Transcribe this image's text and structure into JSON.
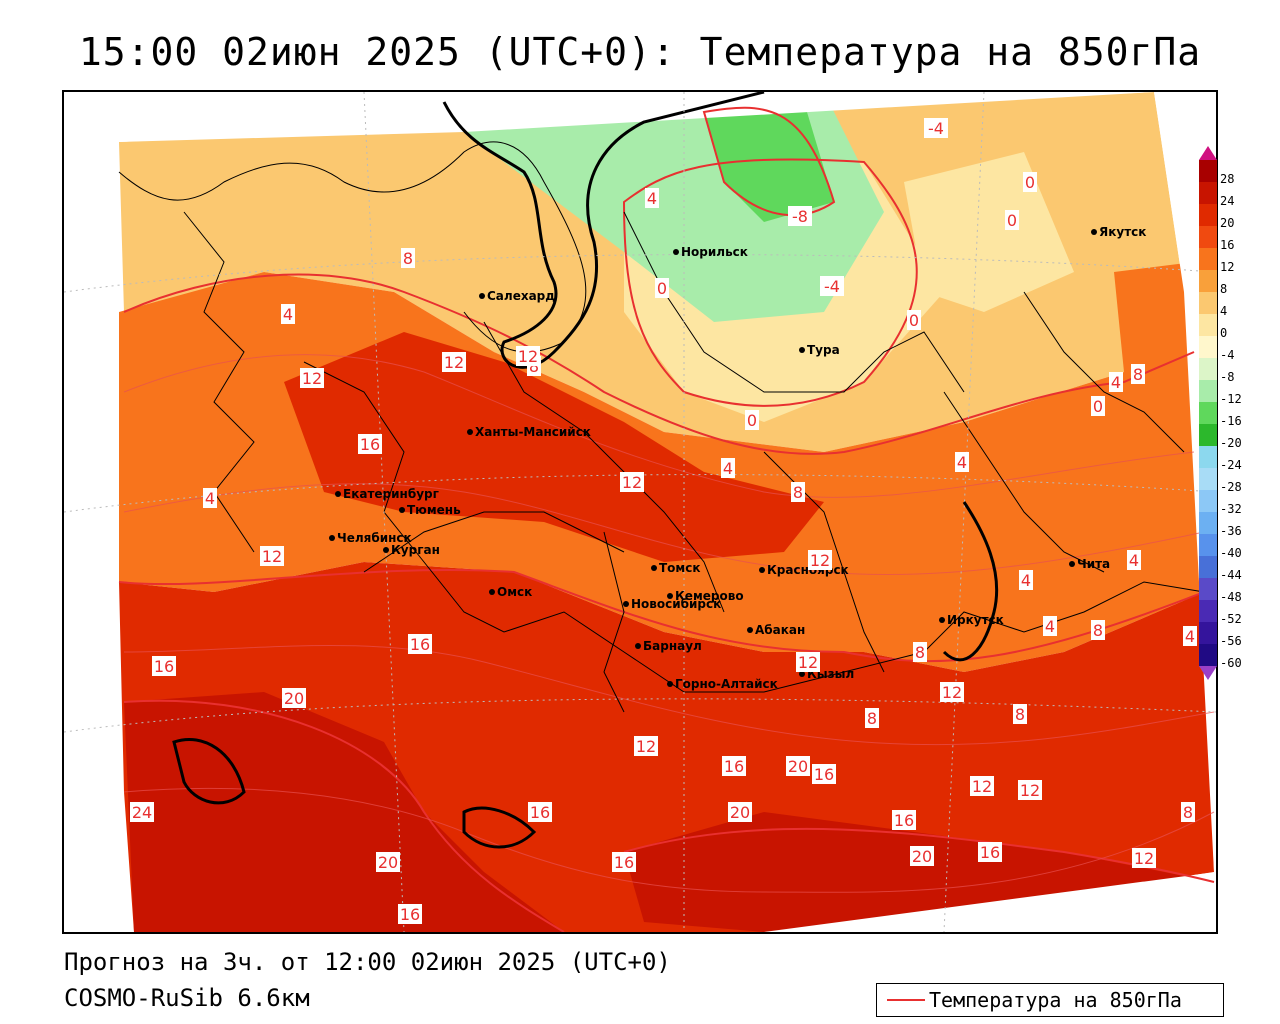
{
  "title": "15:00 02июн 2025 (UTC+0): Температура на 850гПа",
  "footer": {
    "forecast": "Прогноз на 3ч. от 12:00 02июн 2025 (UTC+0)",
    "model": "COSMO-RuSib 6.6км"
  },
  "legend": {
    "series_label": "Температура на 850гПа",
    "line_color": "#e83030",
    "colorbar_ticks": [
      "28",
      "24",
      "20",
      "16",
      "12",
      "8",
      "4",
      "0",
      "-4",
      "-8",
      "-12",
      "-16",
      "-20",
      "-24",
      "-28",
      "-32",
      "-36",
      "-40",
      "-44",
      "-48",
      "-52",
      "-56",
      "-60"
    ],
    "colorbar_colors": [
      "#a80000",
      "#c81400",
      "#e02a00",
      "#f04a10",
      "#f8741c",
      "#f9a03a",
      "#fbc870",
      "#fde6a2",
      "#fff7cc",
      "#dcf5c8",
      "#a8ecaa",
      "#5fd85c",
      "#2cb82c",
      "#8cd8ee",
      "#a8dcf6",
      "#8cc8f6",
      "#6cb0f2",
      "#5892ec",
      "#4870d8",
      "#5a4ac8",
      "#4a2ab4",
      "#34149c",
      "#200a84"
    ]
  },
  "cities": [
    {
      "name": "Норильск"
    },
    {
      "name": "Якутск"
    },
    {
      "name": "Салехард"
    },
    {
      "name": "Тура"
    },
    {
      "name": "Ханты-Мансийск"
    },
    {
      "name": "Екатеринбург"
    },
    {
      "name": "Тюмень"
    },
    {
      "name": "Челябинск"
    },
    {
      "name": "Курган"
    },
    {
      "name": "Омск"
    },
    {
      "name": "Новосибирск"
    },
    {
      "name": "Томск"
    },
    {
      "name": "Кемерово"
    },
    {
      "name": "Красноярск"
    },
    {
      "name": "Абакан"
    },
    {
      "name": "Барнаул"
    },
    {
      "name": "Горно-Алтайск"
    },
    {
      "name": "Кызыл"
    },
    {
      "name": "Иркутск"
    },
    {
      "name": "Чита"
    }
  ],
  "isotherm_labels": [
    "-4",
    "4",
    "0",
    "0",
    "-8",
    "-4",
    "8",
    "0",
    "0",
    "4",
    "12",
    "8",
    "12",
    "16",
    "0",
    "4",
    "12",
    "8",
    "4",
    "4",
    "0",
    "4",
    "8",
    "12",
    "4",
    "4",
    "16",
    "4",
    "12",
    "4",
    "8",
    "4",
    "16",
    "12",
    "8",
    "20",
    "12",
    "12",
    "8",
    "8",
    "12",
    "24",
    "16",
    "16",
    "20",
    "16",
    "20",
    "12",
    "16",
    "20",
    "16",
    "20",
    "16",
    "12",
    "8",
    "16",
    "12"
  ]
}
